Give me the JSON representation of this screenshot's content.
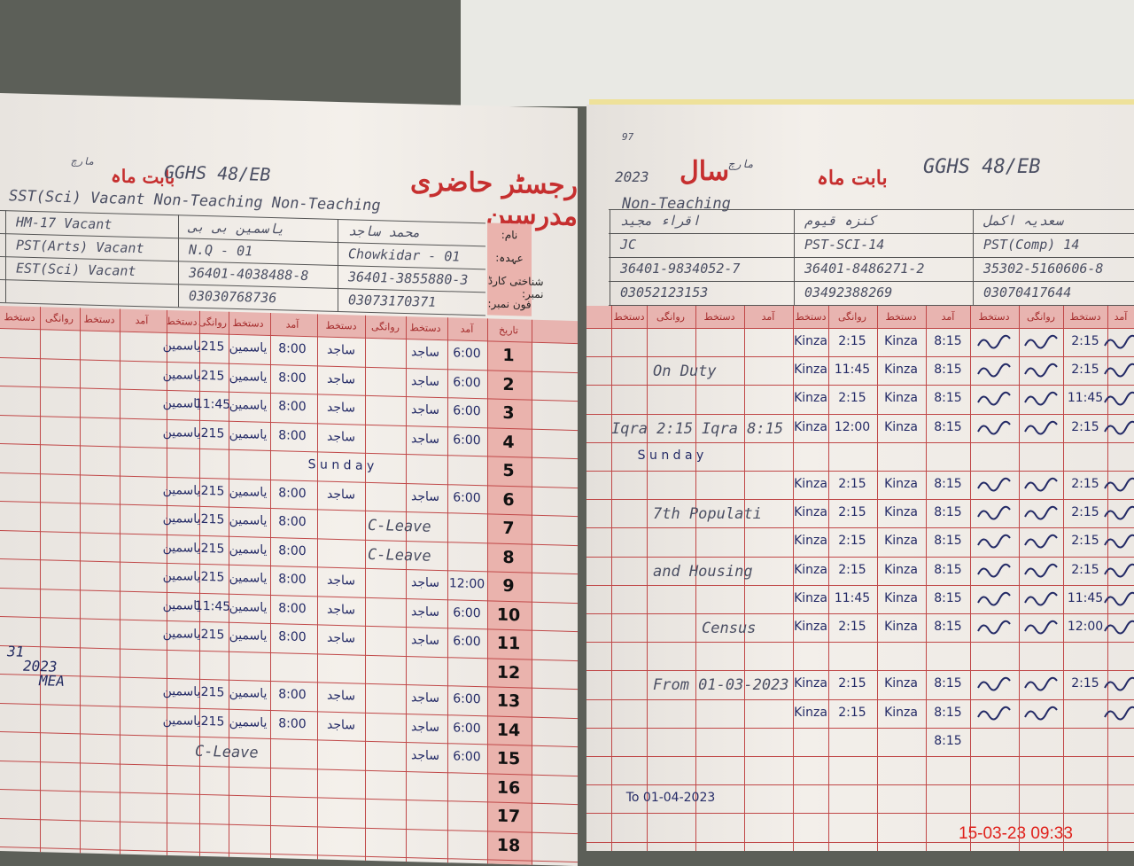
{
  "left_page": {
    "title": "رجسٹر حاضری مدرسین",
    "month_label": "بابت ماہ",
    "month_value": "مارچ",
    "school": "GGHS 48/EB",
    "category_line": "SST(Sci) Vacant Non-Teaching Non-Teaching",
    "row_labels": [
      "نام:",
      "عہدہ:",
      "شناختی کارڈ نمبر:",
      "فون نمبر:"
    ],
    "staff": [
      {
        "name": "HM-17 Vacant",
        "post": "PST(Arts) Vacant",
        "cnic": "EST(Sci) Vacant",
        "phone": ""
      },
      {
        "name": "یاسمین بی بی",
        "post": "N.Q - 01",
        "cnic": "36401-4038488-8",
        "phone": "03030768736"
      },
      {
        "name": "محمد ساجد",
        "post": "Chowkidar - 01",
        "cnic": "36401-3855880-3",
        "phone": "03073170371"
      }
    ],
    "col_headers": [
      "تاریخ",
      "آمد",
      "دستخط",
      "روانگی",
      "دستخط",
      "آمد",
      "دستخط",
      "روانگی",
      "دستخط",
      "آمد",
      "دستخط",
      "روانگی",
      "دستخط"
    ],
    "dates": [
      "1",
      "2",
      "3",
      "4",
      "5",
      "6",
      "7",
      "8",
      "9",
      "10",
      "11",
      "12",
      "13",
      "14",
      "15",
      "16",
      "17",
      "18"
    ],
    "rows": [
      [
        [
          1,
          "6:00"
        ],
        [
          2,
          "ساجد"
        ],
        [
          4,
          "ساجد"
        ],
        [
          5,
          "8:00"
        ],
        [
          6,
          "یاسمین"
        ],
        [
          7,
          "215"
        ],
        [
          8,
          "یاسمین"
        ]
      ],
      [
        [
          1,
          "6:00"
        ],
        [
          2,
          "ساجد"
        ],
        [
          4,
          "ساجد"
        ],
        [
          5,
          "8:00"
        ],
        [
          6,
          "یاسمین"
        ],
        [
          7,
          "215"
        ],
        [
          8,
          "یاسمین"
        ]
      ],
      [
        [
          1,
          "6:00"
        ],
        [
          2,
          "ساجد"
        ],
        [
          4,
          "ساجد"
        ],
        [
          5,
          "8:00"
        ],
        [
          6,
          "یاسمین"
        ],
        [
          7,
          "11:45"
        ],
        [
          8,
          "یاسمین"
        ]
      ],
      [
        [
          1,
          "6:00"
        ],
        [
          2,
          "ساجد"
        ],
        [
          4,
          "ساجد"
        ],
        [
          5,
          "8:00"
        ],
        [
          6,
          "یاسمین"
        ],
        [
          7,
          "215"
        ],
        [
          8,
          "یاسمین"
        ]
      ],
      [
        [
          4,
          "S u n d a y"
        ]
      ],
      [
        [
          1,
          "6:00"
        ],
        [
          2,
          "ساجد"
        ],
        [
          4,
          "ساجد"
        ],
        [
          5,
          "8:00"
        ],
        [
          6,
          "یاسمین"
        ],
        [
          7,
          "215"
        ],
        [
          8,
          "یاسمین"
        ]
      ],
      [
        [
          3,
          "C-Leave"
        ],
        [
          5,
          "8:00"
        ],
        [
          6,
          "یاسمین"
        ],
        [
          7,
          "215"
        ],
        [
          8,
          "یاسمین"
        ]
      ],
      [
        [
          3,
          "C-Leave"
        ],
        [
          5,
          "8:00"
        ],
        [
          6,
          "یاسمین"
        ],
        [
          7,
          "215"
        ],
        [
          8,
          "یاسمین"
        ]
      ],
      [
        [
          1,
          "12:00"
        ],
        [
          2,
          "ساجد"
        ],
        [
          4,
          "ساجد"
        ],
        [
          5,
          "8:00"
        ],
        [
          6,
          "یاسمین"
        ],
        [
          7,
          "215"
        ],
        [
          8,
          "یاسمین"
        ]
      ],
      [
        [
          1,
          "6:00"
        ],
        [
          2,
          "ساجد"
        ],
        [
          4,
          "ساجد"
        ],
        [
          5,
          "8:00"
        ],
        [
          6,
          "یاسمین"
        ],
        [
          7,
          "11:45"
        ],
        [
          8,
          "یاسمین"
        ]
      ],
      [
        [
          1,
          "6:00"
        ],
        [
          2,
          "ساجد"
        ],
        [
          4,
          "ساجد"
        ],
        [
          5,
          "8:00"
        ],
        [
          6,
          "یاسمین"
        ],
        [
          7,
          "215"
        ],
        [
          8,
          "یاسمین"
        ]
      ],
      [],
      [
        [
          1,
          "6:00"
        ],
        [
          2,
          "ساجد"
        ],
        [
          4,
          "ساجد"
        ],
        [
          5,
          "8:00"
        ],
        [
          6,
          "یاسمین"
        ],
        [
          7,
          "215"
        ],
        [
          8,
          "یاسمین"
        ]
      ],
      [
        [
          1,
          "6:00"
        ],
        [
          2,
          "ساجد"
        ],
        [
          4,
          "ساجد"
        ],
        [
          5,
          "8:00"
        ],
        [
          6,
          "یاسمین"
        ],
        [
          7,
          "215"
        ],
        [
          8,
          "یاسمین"
        ]
      ],
      [
        [
          1,
          "6:00"
        ],
        [
          2,
          "ساجد"
        ],
        [
          7,
          "C-Leave"
        ]
      ],
      [],
      [],
      []
    ],
    "margin_note": [
      "31",
      "2023",
      "MEA"
    ]
  },
  "right_page": {
    "page_no": "97",
    "title_label": "بابت ماہ",
    "month_value": "مارچ",
    "year_label": "سال",
    "year": "2023",
    "school": "GGHS 48/EB",
    "category_line": "Non-Teaching",
    "staff": [
      {
        "name": "اقراء مجید",
        "post": "JC",
        "cnic": "36401-9834052-7",
        "phone": "03052123153"
      },
      {
        "name": "کنزہ قیوم",
        "post": "PST-SCI-14",
        "cnic": "36401-8486271-2",
        "phone": "03492388269"
      },
      {
        "name": "سعدیہ اکمل",
        "post": "PST(Comp) 14",
        "cnic": "35302-5160606-8",
        "phone": "03070417644"
      }
    ],
    "col_headers": [
      "دستخط",
      "روانگی",
      "دستخط",
      "آمد",
      "دستخط",
      "روانگی",
      "دستخط",
      "آمد",
      "دستخط",
      "روانگی",
      "دستخط",
      "آمد"
    ],
    "rows": [
      [
        [
          4,
          "Kinza"
        ],
        [
          5,
          "2:15"
        ],
        [
          6,
          "Kinza"
        ],
        [
          7,
          "8:15"
        ],
        [
          10,
          "2:15"
        ]
      ],
      [
        [
          1,
          "On Duty"
        ],
        [
          4,
          "Kinza"
        ],
        [
          5,
          "11:45"
        ],
        [
          6,
          "Kinza"
        ],
        [
          7,
          "8:15"
        ],
        [
          10,
          "2:15"
        ]
      ],
      [
        [
          4,
          "Kinza"
        ],
        [
          5,
          "2:15"
        ],
        [
          6,
          "Kinza"
        ],
        [
          7,
          "8:15"
        ],
        [
          10,
          "11:45"
        ]
      ],
      [
        [
          0,
          "Iqra 2:15"
        ],
        [
          2,
          "Iqra 8:15"
        ],
        [
          4,
          "Kinza"
        ],
        [
          5,
          "12:00"
        ],
        [
          6,
          "Kinza"
        ],
        [
          7,
          "8:15"
        ],
        [
          10,
          "2:15"
        ]
      ],
      [
        [
          1,
          "S u n d a y"
        ]
      ],
      [
        [
          4,
          "Kinza"
        ],
        [
          5,
          "2:15"
        ],
        [
          6,
          "Kinza"
        ],
        [
          7,
          "8:15"
        ],
        [
          10,
          "2:15"
        ]
      ],
      [
        [
          1,
          "7th Populati"
        ],
        [
          4,
          "Kinza"
        ],
        [
          5,
          "2:15"
        ],
        [
          6,
          "Kinza"
        ],
        [
          7,
          "8:15"
        ],
        [
          10,
          "2:15"
        ]
      ],
      [
        [
          4,
          "Kinza"
        ],
        [
          5,
          "2:15"
        ],
        [
          6,
          "Kinza"
        ],
        [
          7,
          "8:15"
        ],
        [
          10,
          "2:15"
        ]
      ],
      [
        [
          1,
          "and Housing"
        ],
        [
          4,
          "Kinza"
        ],
        [
          5,
          "2:15"
        ],
        [
          6,
          "Kinza"
        ],
        [
          7,
          "8:15"
        ],
        [
          10,
          "2:15"
        ]
      ],
      [
        [
          4,
          "Kinza"
        ],
        [
          5,
          "11:45"
        ],
        [
          6,
          "Kinza"
        ],
        [
          7,
          "8:15"
        ],
        [
          10,
          "11:45"
        ]
      ],
      [
        [
          2,
          "Census"
        ],
        [
          4,
          "Kinza"
        ],
        [
          5,
          "2:15"
        ],
        [
          6,
          "Kinza"
        ],
        [
          7,
          "8:15"
        ],
        [
          10,
          "12:00"
        ]
      ],
      [],
      [
        [
          1,
          "From 01-03-2023"
        ],
        [
          4,
          "Kinza"
        ],
        [
          5,
          "2:15"
        ],
        [
          6,
          "Kinza"
        ],
        [
          7,
          "8:15"
        ],
        [
          10,
          "2:15"
        ]
      ],
      [
        [
          4,
          "Kinza"
        ],
        [
          5,
          "2:15"
        ],
        [
          6,
          "Kinza"
        ],
        [
          7,
          "8:15"
        ]
      ],
      [
        [
          7,
          "8:15"
        ]
      ],
      [],
      [
        [
          1,
          "To 01-04-2023"
        ]
      ],
      []
    ]
  },
  "timestamp": "15-03-23  09:33",
  "colors": {
    "ink_blue": "#232a66",
    "print_red": "#c62f2f",
    "header_pink": "#e8b4b0",
    "timestamp_red": "#e0221c"
  }
}
